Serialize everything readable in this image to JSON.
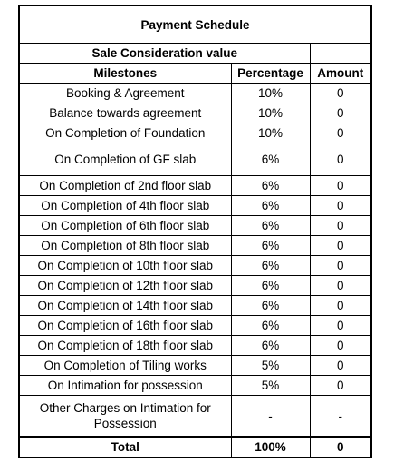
{
  "header": {
    "title": "Payment Schedule",
    "subtitle": "Sale Consideration value"
  },
  "table": {
    "columns": [
      "Milestones",
      "Percentage",
      "Amount"
    ],
    "rows": [
      [
        "Booking & Agreement",
        "10%",
        "0"
      ],
      [
        "Balance towards agreement",
        "10%",
        "0"
      ],
      [
        "On Completion of Foundation",
        "10%",
        "0"
      ],
      [
        "On Completion of GF slab",
        "6%",
        "0"
      ],
      [
        "On Completion of 2nd floor slab",
        "6%",
        "0"
      ],
      [
        "On Completion of 4th floor slab",
        "6%",
        "0"
      ],
      [
        "On Completion of 6th floor slab",
        "6%",
        "0"
      ],
      [
        "On Completion of 8th floor slab",
        "6%",
        "0"
      ],
      [
        "On Completion of 10th floor slab",
        "6%",
        "0"
      ],
      [
        "On Completion of 12th floor slab",
        "6%",
        "0"
      ],
      [
        "On Completion of 14th floor slab",
        "6%",
        "0"
      ],
      [
        "On Completion of 16th floor slab",
        "6%",
        "0"
      ],
      [
        "On Completion of 18th floor slab",
        "6%",
        "0"
      ],
      [
        "On Completion of Tiling works",
        "5%",
        "0"
      ],
      [
        "On Intimation for possession",
        "5%",
        "0"
      ],
      [
        "Other Charges on Intimation for Possession",
        "-",
        "-"
      ]
    ],
    "total": [
      "Total",
      "100%",
      "0"
    ]
  }
}
